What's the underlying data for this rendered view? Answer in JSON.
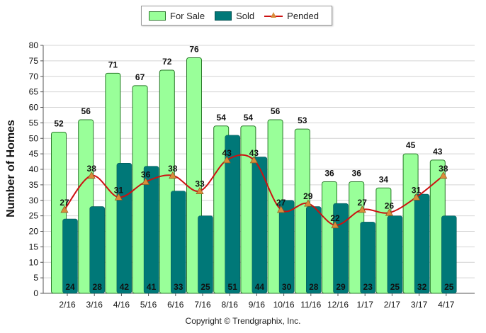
{
  "legend": {
    "for_sale": "For Sale",
    "sold": "Sold",
    "pended": "Pended"
  },
  "copyright": "Copyright © Trendgraphix, Inc.",
  "colors": {
    "for_sale_fill": "#99ff99",
    "for_sale_stroke": "#2b7a2b",
    "sold_fill": "#007878",
    "pended_line": "#cc1111",
    "pended_marker": "#d98c3a",
    "grid": "#d4d4d4"
  },
  "chart_data": {
    "type": "bar",
    "title": "",
    "xlabel": "",
    "ylabel": "Number of Homes",
    "ylim": [
      0,
      80
    ],
    "yticks": [
      0,
      5,
      10,
      15,
      20,
      25,
      30,
      35,
      40,
      45,
      50,
      55,
      60,
      65,
      70,
      75,
      80
    ],
    "grid": true,
    "legend_position": "top-center",
    "categories": [
      "2/16",
      "3/16",
      "4/16",
      "5/16",
      "6/16",
      "7/16",
      "8/16",
      "9/16",
      "10/16",
      "11/16",
      "12/16",
      "1/17",
      "2/17",
      "3/17",
      "4/17"
    ],
    "series": [
      {
        "name": "For Sale",
        "type": "bar",
        "values": [
          52,
          56,
          71,
          67,
          72,
          76,
          54,
          54,
          56,
          53,
          36,
          36,
          34,
          45,
          43
        ]
      },
      {
        "name": "Sold",
        "type": "bar",
        "values": [
          24,
          28,
          42,
          41,
          33,
          25,
          51,
          44,
          30,
          28,
          29,
          23,
          25,
          32,
          25
        ]
      },
      {
        "name": "Pended",
        "type": "line",
        "values": [
          27,
          38,
          31,
          36,
          38,
          33,
          43,
          43,
          27,
          29,
          22,
          27,
          26,
          31,
          38
        ]
      }
    ]
  }
}
